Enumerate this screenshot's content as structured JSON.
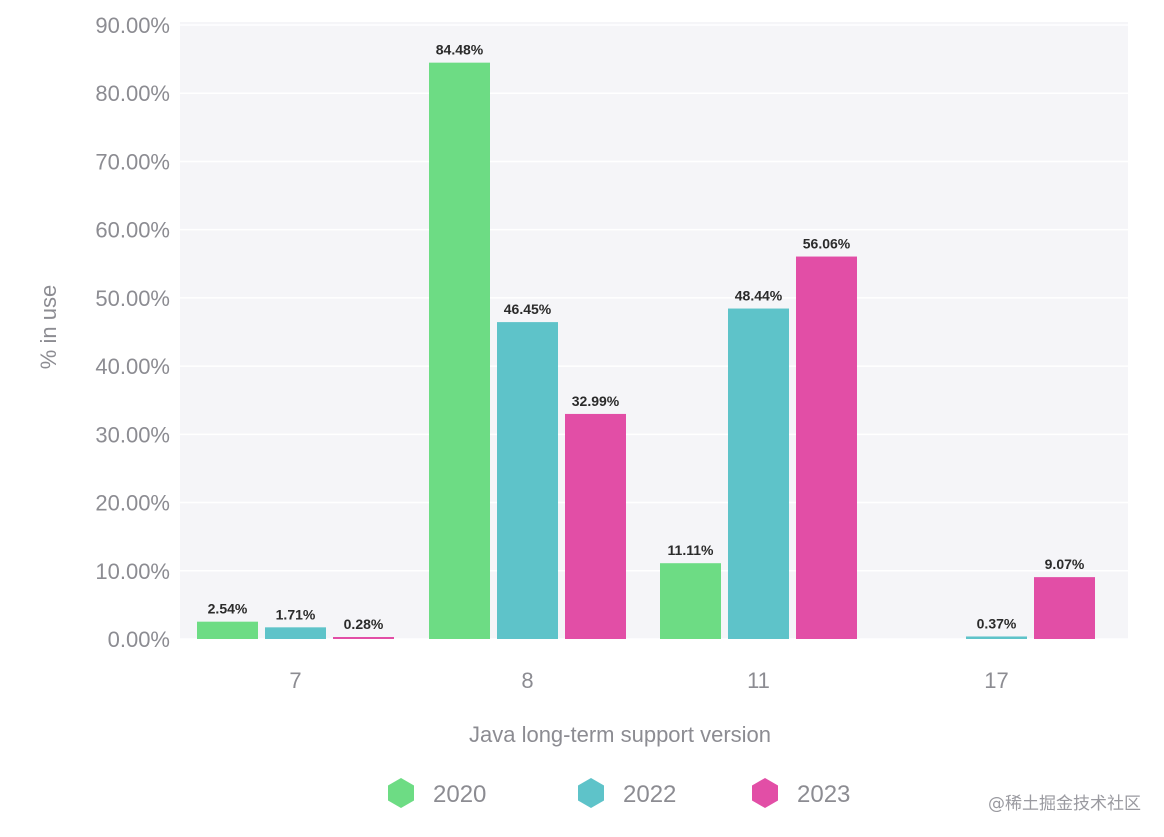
{
  "chart_data": {
    "type": "bar",
    "categories": [
      "7",
      "8",
      "11",
      "17"
    ],
    "series": [
      {
        "name": "2020",
        "color": "#6ddc84",
        "values": [
          2.54,
          84.48,
          11.11,
          null
        ],
        "labels": [
          "2.54%",
          "84.48%",
          "11.11%",
          ""
        ]
      },
      {
        "name": "2022",
        "color": "#5ec3c9",
        "values": [
          1.71,
          46.45,
          48.44,
          0.37
        ],
        "labels": [
          "1.71%",
          "46.45%",
          "48.44%",
          "0.37%"
        ]
      },
      {
        "name": "2023",
        "color": "#e24ea6",
        "values": [
          0.28,
          32.99,
          56.06,
          9.07
        ],
        "labels": [
          "0.28%",
          "32.99%",
          "56.06%",
          "9.07%"
        ]
      }
    ],
    "xlabel": "Java long-term support version",
    "ylabel": "% in use",
    "ylim": [
      0,
      90
    ],
    "yticks": [
      0,
      10,
      20,
      30,
      40,
      50,
      60,
      70,
      80,
      90
    ],
    "ytick_labels": [
      "0.00%",
      "10.00%",
      "20.00%",
      "30.00%",
      "40.00%",
      "50.00%",
      "60.00%",
      "70.00%",
      "80.00%",
      "90.00%"
    ],
    "grid": true,
    "legend_position": "bottom",
    "plot_background": "#f5f5f8"
  },
  "watermark": "@稀土掘金技术社区"
}
